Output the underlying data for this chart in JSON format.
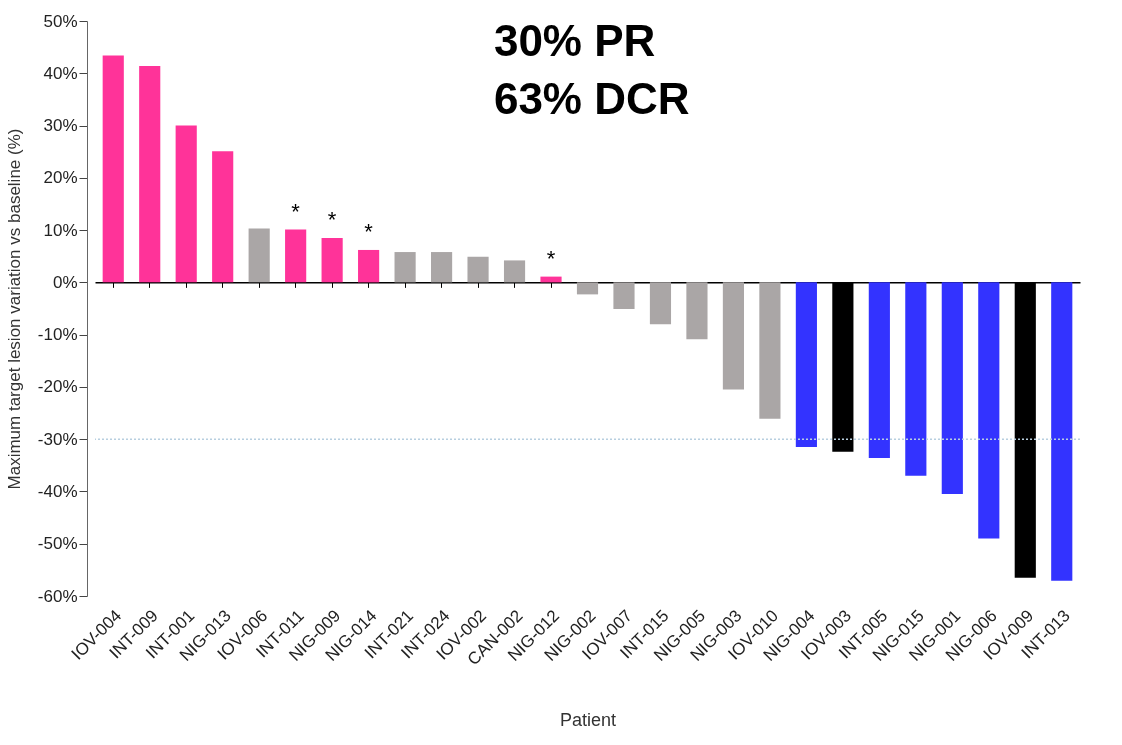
{
  "chart_data": {
    "type": "bar",
    "xlabel": "Patient",
    "ylabel": "Maximum target lesion variation vs baseline (%)",
    "categories": [
      "IOV-004",
      "INT-009",
      "INT-001",
      "NIG-013",
      "IOV-006",
      "INT-011",
      "NIG-009",
      "NIG-014",
      "INT-021",
      "INT-024",
      "IOV-002",
      "CAN-002",
      "NIG-012",
      "NIG-002",
      "IOV-007",
      "INT-015",
      "NIG-005",
      "NIG-003",
      "IOV-010",
      "NIG-004",
      "IOV-003",
      "INT-005",
      "NIG-015",
      "NIG-001",
      "NIG-006",
      "IOV-009",
      "INT-013"
    ],
    "values": [
      43.4,
      41.4,
      30.0,
      25.1,
      10.3,
      10.1,
      8.5,
      6.2,
      5.8,
      5.8,
      4.9,
      4.2,
      1.1,
      -2.3,
      -5.1,
      -8.0,
      -10.9,
      -20.5,
      -26.1,
      -31.5,
      -32.4,
      -33.6,
      -37.0,
      -40.5,
      -49.0,
      -56.5,
      -57.1
    ],
    "colors": [
      "#ff3399",
      "#ff3399",
      "#ff3399",
      "#ff3399",
      "#aaa6a6",
      "#ff3399",
      "#ff3399",
      "#ff3399",
      "#aaa6a6",
      "#aaa6a6",
      "#aaa6a6",
      "#aaa6a6",
      "#ff3399",
      "#aaa6a6",
      "#aaa6a6",
      "#aaa6a6",
      "#aaa6a6",
      "#aaa6a6",
      "#aaa6a6",
      "#3333ff",
      "#000000",
      "#3333ff",
      "#3333ff",
      "#3333ff",
      "#3333ff",
      "#000000",
      "#3333ff"
    ],
    "ylim": [
      -60,
      50
    ],
    "yticks": [
      {
        "value": -60,
        "label": "-60%"
      },
      {
        "value": -50,
        "label": "-50%"
      },
      {
        "value": -40,
        "label": "-40%"
      },
      {
        "value": -30,
        "label": "-30%"
      },
      {
        "value": -20,
        "label": "-20%"
      },
      {
        "value": -10,
        "label": "-10%"
      },
      {
        "value": 0,
        "label": "0%"
      },
      {
        "value": 10,
        "label": "10%"
      },
      {
        "value": 20,
        "label": "20%"
      },
      {
        "value": 30,
        "label": "30%"
      },
      {
        "value": 40,
        "label": "40%"
      },
      {
        "value": 50,
        "label": "50%"
      }
    ],
    "ref_lines": [
      {
        "axis": "y",
        "value": -30,
        "color": "#b8cfe0",
        "line_style": "dotted"
      }
    ],
    "annotations": [
      "30% PR",
      "63% DCR",
      {
        "text": "*",
        "x": "INT-011",
        "y": 10.1
      },
      {
        "text": "*",
        "x": "NIG-009",
        "y": 8.5
      },
      {
        "text": "*",
        "x": "NIG-014",
        "y": 6.2
      },
      {
        "text": "*",
        "x": "NIG-012",
        "y": 1.1
      }
    ],
    "grid": false
  }
}
